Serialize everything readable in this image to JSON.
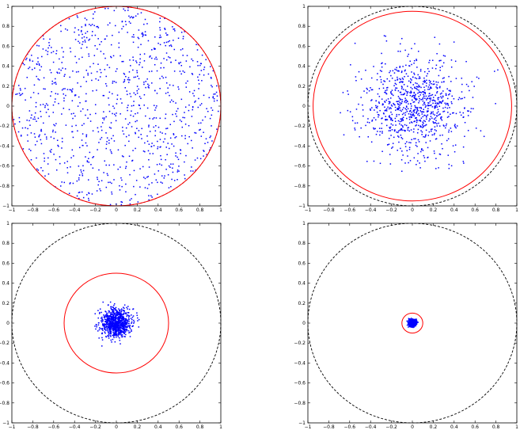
{
  "chart_data": [
    {
      "type": "scatter",
      "xlim": [
        -1,
        1
      ],
      "ylim": [
        -1,
        1
      ],
      "xticks": [
        "−1",
        "−0.8",
        "−0.6",
        "−0.4",
        "−0.2",
        "0",
        "0.2",
        "0.4",
        "0.6",
        "0.8",
        "1"
      ],
      "yticks": [
        "−1",
        "−0.8",
        "−0.6",
        "−0.4",
        "−0.2",
        "0",
        "0.2",
        "0.4",
        "0.6",
        "0.8",
        "1"
      ],
      "grid": false,
      "reference_circle": {
        "radius": 1.0,
        "style": "dashed",
        "color": "#000000"
      },
      "bound_circle": {
        "radius": 1.0,
        "color": "#ff0000"
      },
      "points": {
        "count": 1000,
        "distribution": "uniform-disk",
        "radius": 1.0,
        "color": "#0000ff",
        "seed": 11
      }
    },
    {
      "type": "scatter",
      "xlim": [
        -1,
        1
      ],
      "ylim": [
        -1,
        1
      ],
      "xticks": [
        "−1",
        "−0.8",
        "−0.6",
        "−0.4",
        "−0.2",
        "0",
        "0.2",
        "0.4",
        "0.6",
        "0.8",
        "1"
      ],
      "yticks": [
        "−1",
        "−0.8",
        "−0.6",
        "−0.4",
        "−0.2",
        "0",
        "0.2",
        "0.4",
        "0.6",
        "0.8",
        "1"
      ],
      "grid": false,
      "reference_circle": {
        "radius": 1.0,
        "style": "dashed",
        "color": "#000000"
      },
      "bound_circle": {
        "radius": 0.95,
        "color": "#ff0000"
      },
      "points": {
        "count": 900,
        "distribution": "gaussian",
        "sigma": 0.24,
        "max_radius": 0.9,
        "color": "#0000ff",
        "seed": 23
      }
    },
    {
      "type": "scatter",
      "xlim": [
        -1,
        1
      ],
      "ylim": [
        -1,
        1
      ],
      "xticks": [
        "−1",
        "−0.8",
        "−0.6",
        "−0.4",
        "−0.2",
        "0",
        "0.2",
        "0.4",
        "0.6",
        "0.8",
        "1"
      ],
      "yticks": [
        "−1",
        "−0.8",
        "−0.6",
        "−0.4",
        "−0.2",
        "0",
        "0.2",
        "0.4",
        "0.6",
        "0.8",
        "1"
      ],
      "grid": false,
      "reference_circle": {
        "radius": 1.0,
        "style": "dashed",
        "color": "#000000"
      },
      "bound_circle": {
        "radius": 0.5,
        "color": "#ff0000"
      },
      "points": {
        "count": 900,
        "distribution": "gaussian",
        "sigma": 0.07,
        "max_radius": 0.3,
        "color": "#0000ff",
        "seed": 37
      }
    },
    {
      "type": "scatter",
      "xlim": [
        -1,
        1
      ],
      "ylim": [
        -1,
        1
      ],
      "xticks": [
        "−1",
        "−0.8",
        "−0.6",
        "−0.4",
        "−0.2",
        "0",
        "0.2",
        "0.4",
        "0.6",
        "0.8",
        "1"
      ],
      "yticks": [
        "−1",
        "−0.8",
        "−0.6",
        "−0.4",
        "−0.2",
        "0",
        "0.2",
        "0.4",
        "0.6",
        "0.8",
        "1"
      ],
      "grid": false,
      "reference_circle": {
        "radius": 1.0,
        "style": "dashed",
        "color": "#000000"
      },
      "bound_circle": {
        "radius": 0.1,
        "color": "#ff0000"
      },
      "points": {
        "count": 600,
        "distribution": "gaussian",
        "sigma": 0.018,
        "max_radius": 0.06,
        "color": "#0000ff",
        "seed": 53
      }
    }
  ]
}
